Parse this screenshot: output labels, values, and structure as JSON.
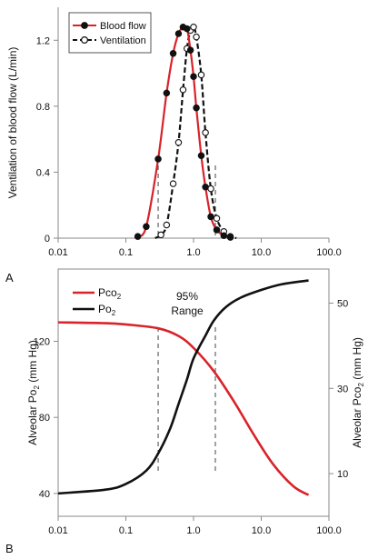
{
  "panel_labels": {
    "a": "A",
    "b": "B"
  },
  "colors": {
    "red": "#d8232a",
    "black": "#111111",
    "frame": "#8a8a8a"
  },
  "chart_data": [
    {
      "type": "line",
      "panel": "A",
      "xscale": "log",
      "xlim": [
        0.01,
        100.0
      ],
      "ylim": [
        0,
        1.4
      ],
      "x_ticks": [
        "0.01",
        "0.1",
        "1.0",
        "10.0",
        "100.0"
      ],
      "y_ticks": [
        "0",
        "0.4",
        "0.8",
        "1.2"
      ],
      "ylabel": "Ventilation of blood flow (L/min)",
      "legend_position": "top-left",
      "series": [
        {
          "name": "Blood flow",
          "color": "#d8232a",
          "marker": "filled-circle",
          "line": "solid",
          "x": [
            0.15,
            0.2,
            0.3,
            0.4,
            0.5,
            0.6,
            0.7,
            0.8,
            0.9,
            1.0,
            1.1,
            1.3,
            1.5,
            1.8,
            2.2,
            2.8,
            3.5
          ],
          "y": [
            0.01,
            0.07,
            0.48,
            0.88,
            1.12,
            1.24,
            1.28,
            1.27,
            1.14,
            0.98,
            0.79,
            0.5,
            0.31,
            0.13,
            0.05,
            0.015,
            0.005
          ]
        },
        {
          "name": "Ventilation",
          "color": "#111111",
          "marker": "open-circle",
          "line": "dashed",
          "x": [
            0.27,
            0.33,
            0.4,
            0.5,
            0.6,
            0.7,
            0.8,
            0.9,
            1.0,
            1.1,
            1.3,
            1.5,
            1.8,
            2.2,
            2.8,
            3.5,
            4.3
          ],
          "y": [
            0.0,
            0.02,
            0.08,
            0.33,
            0.58,
            0.9,
            1.15,
            1.26,
            1.28,
            1.22,
            0.99,
            0.64,
            0.3,
            0.12,
            0.04,
            0.01,
            0.0
          ]
        }
      ],
      "range_lines": [
        0.3,
        2.1
      ]
    },
    {
      "type": "line",
      "panel": "B",
      "xscale": "log",
      "xlim": [
        0.01,
        100.0
      ],
      "ylim_left": [
        28,
        158
      ],
      "ylim_right": [
        0,
        58
      ],
      "x_ticks": [
        "0.01",
        "0.1",
        "1.0",
        "10.0",
        "100.0"
      ],
      "y_ticks_left": [
        "40",
        "80",
        "120"
      ],
      "y_ticks_right": [
        "10",
        "30",
        "50"
      ],
      "ylabel_left": "Alveolar Po",
      "ylabel_left_sub": "2",
      "ylabel_left_suffix": " (mm Hg)",
      "ylabel_right": "Alveolar Pco",
      "ylabel_right_sub": "2",
      "ylabel_right_suffix": " (mm Hg)",
      "legend_position": "top-left",
      "annotation": [
        "95%",
        "Range"
      ],
      "range_lines": [
        0.3,
        2.1
      ],
      "series": [
        {
          "name": "Pco",
          "name_sub": "2",
          "axis": "right",
          "color": "#d8232a",
          "x": [
            0.01,
            0.05,
            0.1,
            0.3,
            0.6,
            1.0,
            2.0,
            4.0,
            8.0,
            15.0,
            30.0,
            50.0
          ],
          "y": [
            45.5,
            45.3,
            45.0,
            44.1,
            42.3,
            39.5,
            34.0,
            26.8,
            18.8,
            12.2,
            7.0,
            5.0
          ]
        },
        {
          "name": "Po",
          "name_sub": "2",
          "axis": "left",
          "color": "#111111",
          "x": [
            0.01,
            0.05,
            0.1,
            0.2,
            0.3,
            0.45,
            0.6,
            0.8,
            1.0,
            1.5,
            2.0,
            3.0,
            5.0,
            10.0,
            20.0,
            50.0
          ],
          "y": [
            40,
            42,
            45,
            52,
            61,
            74,
            87,
            100,
            111,
            123,
            131,
            138,
            143,
            147,
            150,
            152
          ]
        }
      ]
    }
  ]
}
